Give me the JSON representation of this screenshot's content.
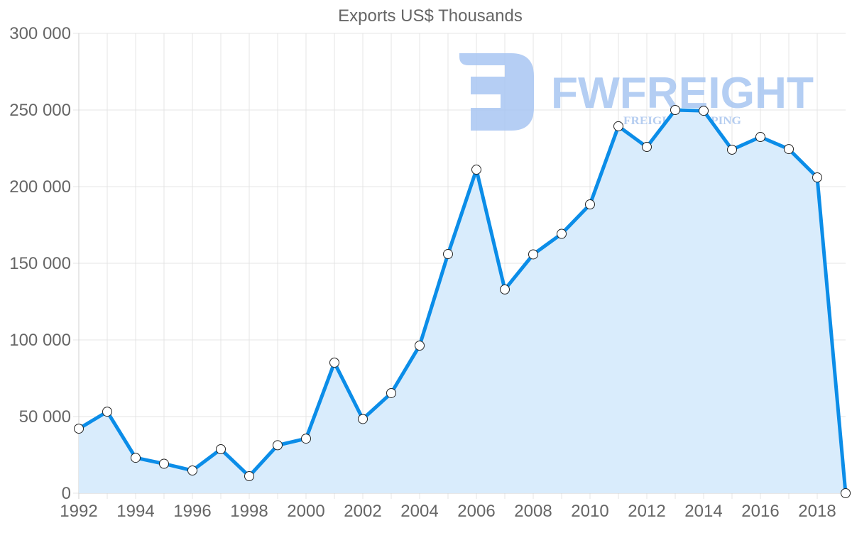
{
  "chart_data": {
    "type": "line",
    "title": "Exports US$ Thousands",
    "xlabel": "",
    "ylabel": "",
    "ylim": [
      0,
      300000
    ],
    "yticks": [
      0,
      50000,
      100000,
      150000,
      200000,
      250000,
      300000
    ],
    "ytick_labels": [
      "0",
      "50 000",
      "100 000",
      "150 000",
      "200 000",
      "250 000",
      "300 000"
    ],
    "xtick_labels": [
      "1992",
      "1994",
      "1996",
      "1998",
      "2000",
      "2002",
      "2004",
      "2006",
      "2008",
      "2010",
      "2012",
      "2014",
      "2016",
      "2018"
    ],
    "grid": true,
    "legend": null,
    "filled": true,
    "x": [
      1992,
      1993,
      1994,
      1995,
      1996,
      1997,
      1998,
      1999,
      2000,
      2001,
      2002,
      2003,
      2004,
      2005,
      2006,
      2007,
      2008,
      2009,
      2010,
      2011,
      2012,
      2013,
      2014,
      2015,
      2016,
      2017,
      2018,
      2019
    ],
    "series": [
      {
        "name": "Exports US$ Thousands",
        "values": [
          42100,
          53200,
          23100,
          19200,
          14800,
          28700,
          11100,
          31300,
          35600,
          85200,
          48400,
          65300,
          96300,
          156000,
          211100,
          132900,
          155800,
          169200,
          188400,
          239400,
          225900,
          250000,
          249500,
          224100,
          232400,
          224500,
          206000,
          0
        ]
      }
    ]
  },
  "colors": {
    "line": "#0b8de8",
    "area": "#d9ecfc",
    "watermark": "#a8c6f2",
    "watermark_sub": "#a9c5ee"
  },
  "watermark": {
    "brand": "FWFREIGHT",
    "tagline": "FREIGHT SHIPPING"
  }
}
